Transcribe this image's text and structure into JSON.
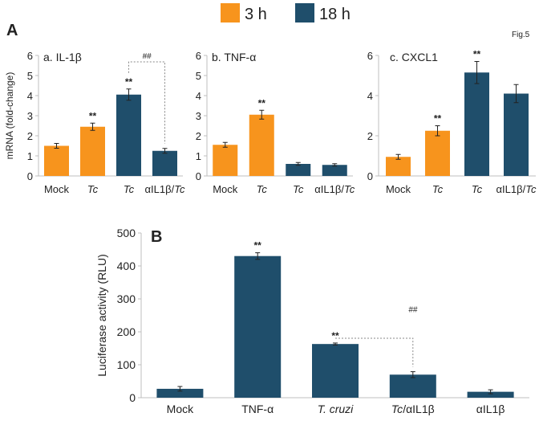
{
  "figure_label": "Fig.5",
  "panel_a_label": "A",
  "panel_b_label": "B",
  "legend": [
    {
      "name": "3 h",
      "color": "#F7941D"
    },
    {
      "name": "18 h",
      "color": "#1F4E6B"
    }
  ],
  "colors": {
    "orange": "#F7941D",
    "navy": "#1F4E6B",
    "axis": "#BFBFBF",
    "sig_line": "#888888"
  },
  "chart_data": [
    {
      "type": "bar",
      "title": "a. IL-1β",
      "ylabel": "mRNA (fold-change)",
      "ylim": [
        0,
        6
      ],
      "yticks": [
        "0",
        "1",
        "2",
        "3",
        "4",
        "5",
        "6"
      ],
      "categories": [
        {
          "parts": [
            {
              "text": "Mock",
              "italic": false
            }
          ]
        },
        {
          "parts": [
            {
              "text": "Tc",
              "italic": true
            }
          ]
        },
        {
          "parts": [
            {
              "text": "Tc",
              "italic": true
            }
          ]
        },
        {
          "parts": [
            {
              "text": "αIL1β/",
              "italic": false
            },
            {
              "text": "Tc",
              "italic": true
            }
          ]
        }
      ],
      "values": [
        1.5,
        2.45,
        4.05,
        1.25
      ],
      "errors": [
        0.12,
        0.18,
        0.28,
        0.12
      ],
      "series": [
        "3 h",
        "3 h",
        "18 h",
        "18 h"
      ],
      "significance": [
        "",
        "**",
        "**",
        ""
      ],
      "comparison": {
        "from": 2,
        "to": 3,
        "label": "##"
      }
    },
    {
      "type": "bar",
      "title": "b. TNF-α",
      "ylabel": "",
      "ylim": [
        0,
        6
      ],
      "yticks": [
        "0",
        "1",
        "2",
        "3",
        "4",
        "5",
        "6"
      ],
      "categories": [
        {
          "parts": [
            {
              "text": "Mock",
              "italic": false
            }
          ]
        },
        {
          "parts": [
            {
              "text": "Tc",
              "italic": true
            }
          ]
        },
        {
          "parts": [
            {
              "text": "Tc",
              "italic": true
            }
          ]
        },
        {
          "parts": [
            {
              "text": "αIL1β/",
              "italic": false
            },
            {
              "text": "Tc",
              "italic": true
            }
          ]
        }
      ],
      "values": [
        1.55,
        3.05,
        0.6,
        0.55
      ],
      "errors": [
        0.12,
        0.22,
        0.07,
        0.06
      ],
      "series": [
        "3 h",
        "3 h",
        "18 h",
        "18 h"
      ],
      "significance": [
        "",
        "**",
        "",
        ""
      ]
    },
    {
      "type": "bar",
      "title": "c. CXCL1",
      "ylabel": "",
      "ylim": [
        0,
        6
      ],
      "yticks": [
        "0",
        "2",
        "4",
        "6"
      ],
      "categories": [
        {
          "parts": [
            {
              "text": "Mock",
              "italic": false
            }
          ]
        },
        {
          "parts": [
            {
              "text": "Tc",
              "italic": true
            }
          ]
        },
        {
          "parts": [
            {
              "text": "Tc",
              "italic": true
            }
          ]
        },
        {
          "parts": [
            {
              "text": "αIL1β/",
              "italic": false
            },
            {
              "text": "Tc",
              "italic": true
            }
          ]
        }
      ],
      "values": [
        0.95,
        2.25,
        5.15,
        4.1
      ],
      "errors": [
        0.12,
        0.25,
        0.55,
        0.45
      ],
      "series": [
        "3 h",
        "3 h",
        "18 h",
        "18 h"
      ],
      "significance": [
        "",
        "**",
        "**",
        ""
      ]
    },
    {
      "type": "bar",
      "title": "",
      "ylabel": "Luciferase activity (RLU)",
      "ylim": [
        0,
        500
      ],
      "yticks": [
        "0",
        "100",
        "200",
        "300",
        "400",
        "500"
      ],
      "categories": [
        {
          "parts": [
            {
              "text": "Mock",
              "italic": false
            }
          ]
        },
        {
          "parts": [
            {
              "text": "TNF-α",
              "italic": false
            }
          ]
        },
        {
          "parts": [
            {
              "text": "T. cruzi",
              "italic": true
            }
          ]
        },
        {
          "parts": [
            {
              "text": "Tc",
              "italic": true
            },
            {
              "text": "/αIL1β",
              "italic": false
            }
          ]
        },
        {
          "parts": [
            {
              "text": "αIL1β",
              "italic": false
            }
          ]
        }
      ],
      "values": [
        27,
        430,
        163,
        70,
        18
      ],
      "errors": [
        7,
        10,
        3,
        9,
        6
      ],
      "series": [
        "18 h",
        "18 h",
        "18 h",
        "18 h",
        "18 h"
      ],
      "significance": [
        "",
        "**",
        "**",
        "",
        ""
      ],
      "comparison": {
        "from": 2,
        "to": 3,
        "label": "##"
      }
    }
  ]
}
